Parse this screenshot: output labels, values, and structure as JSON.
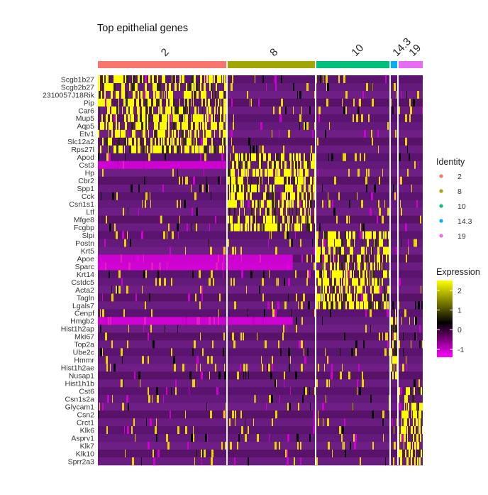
{
  "chart_data": {
    "type": "heatmap",
    "title": "Top epithelial genes",
    "genes": [
      "Scgb1b27",
      "Scgb2b27",
      "2310057J18Rik",
      "Pip",
      "Car6",
      "Mup5",
      "Aqp5",
      "Etv1",
      "Slc12a2",
      "Rps27l",
      "Apod",
      "Cst3",
      "Hp",
      "Cbr2",
      "Spp1",
      "Cck",
      "Csn1s1",
      "Ltf",
      "Mfge8",
      "Fcgbp",
      "Slpi",
      "Postn",
      "Krt5",
      "Apoe",
      "Sparc",
      "Krt14",
      "Cstdc5",
      "Acta2",
      "Tagln",
      "Lgals7",
      "Cenpf",
      "Hmgb2",
      "Hist1h2ap",
      "Mki67",
      "Top2a",
      "Ube2c",
      "Hmmr",
      "Hist1h2ae",
      "Nusap1",
      "Hist1h1b",
      "Cst6",
      "Csn1s2a",
      "Glycam1",
      "Csn2",
      "Crct1",
      "Klk6",
      "Asprv1",
      "Klk7",
      "Klk10",
      "Sprr2a3"
    ],
    "clusters": [
      {
        "name": "2",
        "color": "#F8766D",
        "fraction": 0.397
      },
      {
        "name": "8",
        "color": "#A3A500",
        "fraction": 0.273
      },
      {
        "name": "10",
        "color": "#00BF7D",
        "fraction": 0.229
      },
      {
        "name": "14.3",
        "color": "#00B0F6",
        "fraction": 0.024
      },
      {
        "name": "19",
        "color": "#E76BF3",
        "fraction": 0.077
      }
    ],
    "marker_genes": {
      "2": [
        0,
        9
      ],
      "8": [
        10,
        19
      ],
      "10": [
        20,
        29
      ],
      "14.3": [
        30,
        39
      ],
      "19": [
        40,
        49
      ]
    },
    "legend_identity": {
      "title": "Identity",
      "items": [
        "2",
        "8",
        "10",
        "14.3",
        "19"
      ]
    },
    "legend_expression": {
      "title": "Expression",
      "ticks": [
        2,
        1,
        0,
        -1
      ],
      "range": [
        -1.4,
        2.5
      ],
      "gradient": [
        "#FF00FF",
        "#000000",
        "#FFFF00"
      ]
    }
  }
}
